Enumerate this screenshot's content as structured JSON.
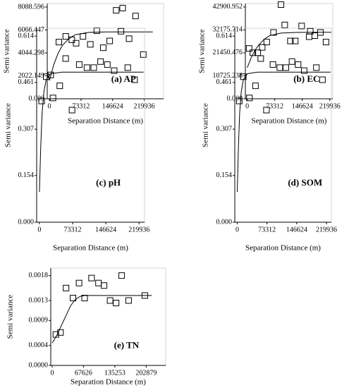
{
  "chart_data": [
    {
      "type": "scatter",
      "annotation": "(a) AP",
      "xlabel": "Separation Distance (m)",
      "ylabel": "Semi variance",
      "xlim": [
        -5000,
        265000
      ],
      "ylim": [
        0,
        8400
      ],
      "xticks": [
        0,
        73312,
        146624,
        219936
      ],
      "yticks": [
        {
          "value": 0,
          "label": "0.000"
        },
        2022.149,
        4044.298,
        6066.447,
        8088.596
      ],
      "x": [
        3000,
        22000,
        38000,
        52000,
        62000,
        78000,
        95000,
        110000,
        125000,
        140000,
        155000,
        170000,
        185000,
        200000,
        218000
      ],
      "y": [
        2100,
        5000,
        5500,
        5200,
        4900,
        5500,
        4800,
        6000,
        4500,
        5100,
        7800,
        8000,
        5300,
        7300,
        3900
      ],
      "fit_x": [
        0,
        10000,
        20000,
        30000,
        45000,
        60000,
        90000,
        130000,
        180000,
        240000
      ],
      "fit_y": [
        1600,
        3000,
        4000,
        4700,
        5300,
        5650,
        5850,
        5900,
        5900,
        5900
      ]
    },
    {
      "type": "scatter",
      "annotation": "(b) EC",
      "xlabel": "Separation Distance (m)",
      "ylabel": "Semi variance",
      "xlim": [
        -5000,
        228000
      ],
      "ylim": [
        0,
        44500
      ],
      "xticks": [
        0,
        73312,
        146624,
        219936
      ],
      "yticks": [
        {
          "value": 0,
          "label": "0.000"
        },
        10725.238,
        21450.476,
        32175.714,
        42900.952
      ],
      "x": [
        5000,
        15000,
        28000,
        40000,
        52000,
        70000,
        90000,
        100000,
        115000,
        128000,
        145000,
        165000,
        180000,
        195000,
        210000
      ],
      "y": [
        23500,
        21500,
        21500,
        24000,
        26500,
        31000,
        44000,
        34500,
        27000,
        27000,
        34000,
        29000,
        29500,
        31000,
        26500
      ],
      "fit_x": [
        0,
        10000,
        20000,
        30000,
        45000,
        60000,
        90000,
        130000,
        180000,
        225000
      ],
      "fit_y": [
        14500,
        19000,
        22500,
        25000,
        27800,
        29500,
        30700,
        31000,
        31100,
        31100
      ]
    },
    {
      "type": "scatter",
      "annotation": "(c) pH",
      "xlabel": "Separation Distance (m)",
      "ylabel": "Semi variance",
      "xlim": [
        -6000,
        232000
      ],
      "ylim": [
        0,
        0.64
      ],
      "xticks": [
        0,
        73312,
        146624,
        219936
      ],
      "yticks": [
        {
          "value": 0,
          "label": "0.000"
        },
        0.154,
        0.307,
        0.461,
        0.614
      ],
      "x": [
        5000,
        15000,
        30000,
        45000,
        58000,
        72000,
        88000,
        105000,
        120000,
        135000,
        150000,
        165000,
        180000,
        195000,
        210000
      ],
      "y": [
        0.4,
        0.48,
        0.41,
        0.45,
        0.54,
        0.37,
        0.52,
        0.51,
        0.51,
        0.53,
        0.52,
        0.5,
        0.63,
        0.51,
        0.47
      ],
      "fit_x": [
        0,
        3000,
        6000,
        10000,
        15000,
        25000,
        50000,
        100000,
        230000
      ],
      "fit_y": [
        0.1,
        0.25,
        0.36,
        0.43,
        0.47,
        0.49,
        0.495,
        0.495,
        0.495
      ]
    },
    {
      "type": "scatter",
      "annotation": "(d) SOM",
      "xlabel": "Separation Distance (m)",
      "ylabel": "Semi variance",
      "xlim": [
        -6000,
        232000
      ],
      "ylim": [
        0,
        0.64
      ],
      "xticks": [
        0,
        73312,
        146624,
        219936
      ],
      "yticks": [
        {
          "value": 0,
          "label": "0.000"
        },
        0.154,
        0.307,
        0.461,
        0.614
      ],
      "x": [
        5000,
        15000,
        30000,
        45000,
        58000,
        72000,
        88000,
        105000,
        120000,
        135000,
        150000,
        165000,
        180000,
        195000,
        210000
      ],
      "y": [
        0.4,
        0.48,
        0.41,
        0.45,
        0.54,
        0.37,
        0.52,
        0.51,
        0.51,
        0.53,
        0.52,
        0.5,
        0.63,
        0.51,
        0.47
      ],
      "fit_x": [
        0,
        3000,
        6000,
        10000,
        15000,
        25000,
        50000,
        100000,
        230000
      ],
      "fit_y": [
        0.1,
        0.25,
        0.36,
        0.43,
        0.47,
        0.49,
        0.495,
        0.495,
        0.495
      ]
    },
    {
      "type": "scatter",
      "annotation": "(e) TN",
      "xlabel": "Separation Distance (m)",
      "ylabel": "Semi variance",
      "xlim": [
        -3000,
        245000
      ],
      "ylim": [
        0,
        0.00195
      ],
      "xticks": [
        0,
        67626,
        135253,
        202879
      ],
      "yticks": [
        {
          "value": 0,
          "label": "0.0000"
        },
        0.0004,
        0.0009,
        0.0013,
        0.0018
      ],
      "x": [
        8000,
        18000,
        30000,
        45000,
        58000,
        70000,
        85000,
        100000,
        112000,
        125000,
        138000,
        150000,
        165000,
        200000
      ],
      "y": [
        0.00062,
        0.00066,
        0.00155,
        0.00135,
        0.00165,
        0.00135,
        0.00175,
        0.00165,
        0.0016,
        0.0013,
        0.00125,
        0.0018,
        0.0013,
        0.0014
      ],
      "fit_x": [
        0,
        10000,
        20000,
        30000,
        40000,
        50000,
        60000,
        70000,
        100000,
        215000
      ],
      "fit_y": [
        0.00045,
        0.0006,
        0.0008,
        0.001,
        0.0012,
        0.00132,
        0.00138,
        0.0014,
        0.0014,
        0.0014
      ]
    }
  ]
}
